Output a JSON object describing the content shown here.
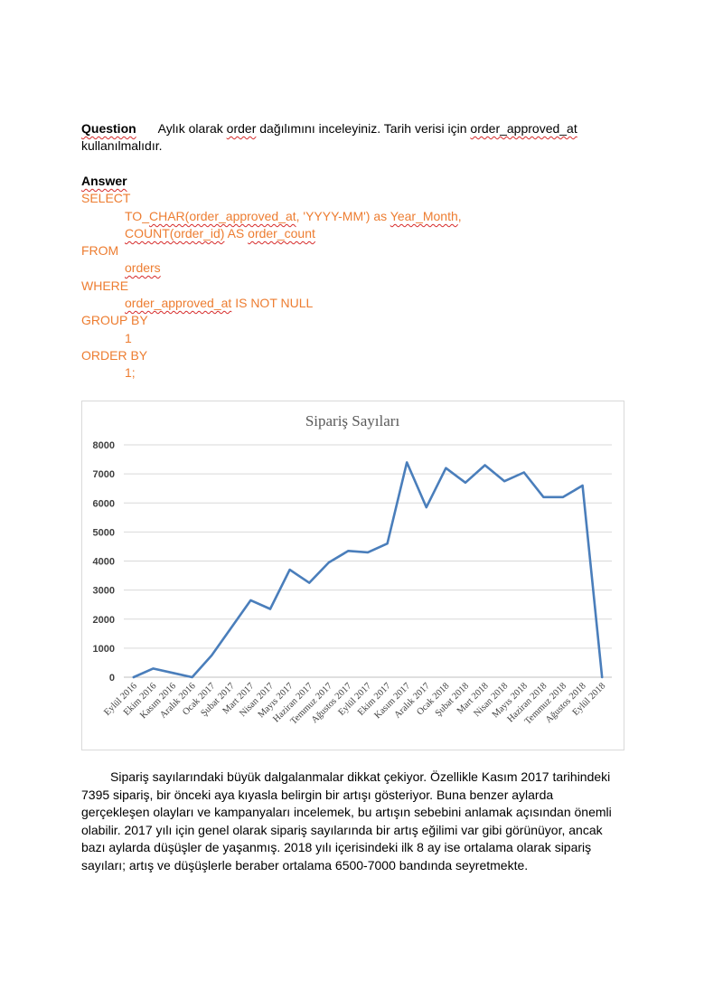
{
  "question": {
    "label": "Question",
    "text_pre": "Aylık olarak ",
    "word_order": "order",
    "text_mid": " dağılımını inceleyiniz. Tarih verisi için ",
    "word_field": "order_approved_at",
    "line2": "kullanılmalıdır."
  },
  "answer": {
    "label": "Answer",
    "sql": {
      "select": "SELECT",
      "to_char_prefix": "TO_",
      "to_char_fn": "CHAR(order_approved_at",
      "to_char_rest": ", 'YYYY-MM') as ",
      "alias_year_month": "Year_Month",
      "alias_year_month_suffix": ",",
      "count_fn": "COUNT(order_id)",
      "as_kw": " AS ",
      "alias_count": "order_count",
      "from": "FROM",
      "table": "orders",
      "where": "WHERE",
      "where_col": "order_approved_at",
      "where_rest": " IS NOT NULL",
      "group_by": "GROUP BY",
      "group_val": "1",
      "order_by": "ORDER BY",
      "order_val": "1;"
    }
  },
  "chart_data": {
    "type": "line",
    "title": "Sipariş Sayıları",
    "xlabel": "",
    "ylabel": "",
    "ylim": [
      0,
      8000
    ],
    "yticks": [
      0,
      1000,
      2000,
      3000,
      4000,
      5000,
      6000,
      7000,
      8000
    ],
    "grid": true,
    "color": "#4a7ebb",
    "categories": [
      "Eylül 2016",
      "Ekim 2016",
      "Kasım 2016",
      "Aralık 2016",
      "Ocak 2017",
      "Şubat 2017",
      "Mart 2017",
      "Nisan 2017",
      "Mayıs 2017",
      "Haziran 2017",
      "Temmuz 2017",
      "Ağustos 2017",
      "Eylül 2017",
      "Ekim 2017",
      "Kasım 2017",
      "Aralık 2017",
      "Ocak 2018",
      "Şubat 2018",
      "Mart 2018",
      "Nisan 2018",
      "Mayıs 2018",
      "Haziran 2018",
      "Temmuz 2018",
      "Ağustos 2018",
      "Eylül 2018"
    ],
    "values": [
      0,
      300,
      150,
      0,
      750,
      1700,
      2650,
      2350,
      3700,
      3250,
      3950,
      4350,
      4300,
      4600,
      7395,
      5850,
      7200,
      6700,
      7300,
      6750,
      7050,
      6200,
      6200,
      6600,
      0
    ]
  },
  "paragraph": "Sipariş sayılarındaki büyük dalgalanmalar dikkat çekiyor. Özellikle Kasım 2017 tarihindeki 7395 sipariş, bir önceki aya kıyasla belirgin bir artışı gösteriyor. Buna benzer aylarda gerçekleşen olayları ve kampanyaları incelemek, bu artışın sebebini anlamak açısından önemli olabilir. 2017 yılı için genel olarak sipariş sayılarında bir artış eğilimi var gibi görünüyor, ancak bazı aylarda düşüşler de yaşanmış. 2018 yılı içerisindeki ilk 8 ay ise ortalama olarak sipariş sayıları; artış ve düşüşlerle beraber ortalama 6500-7000 bandında seyretmekte."
}
